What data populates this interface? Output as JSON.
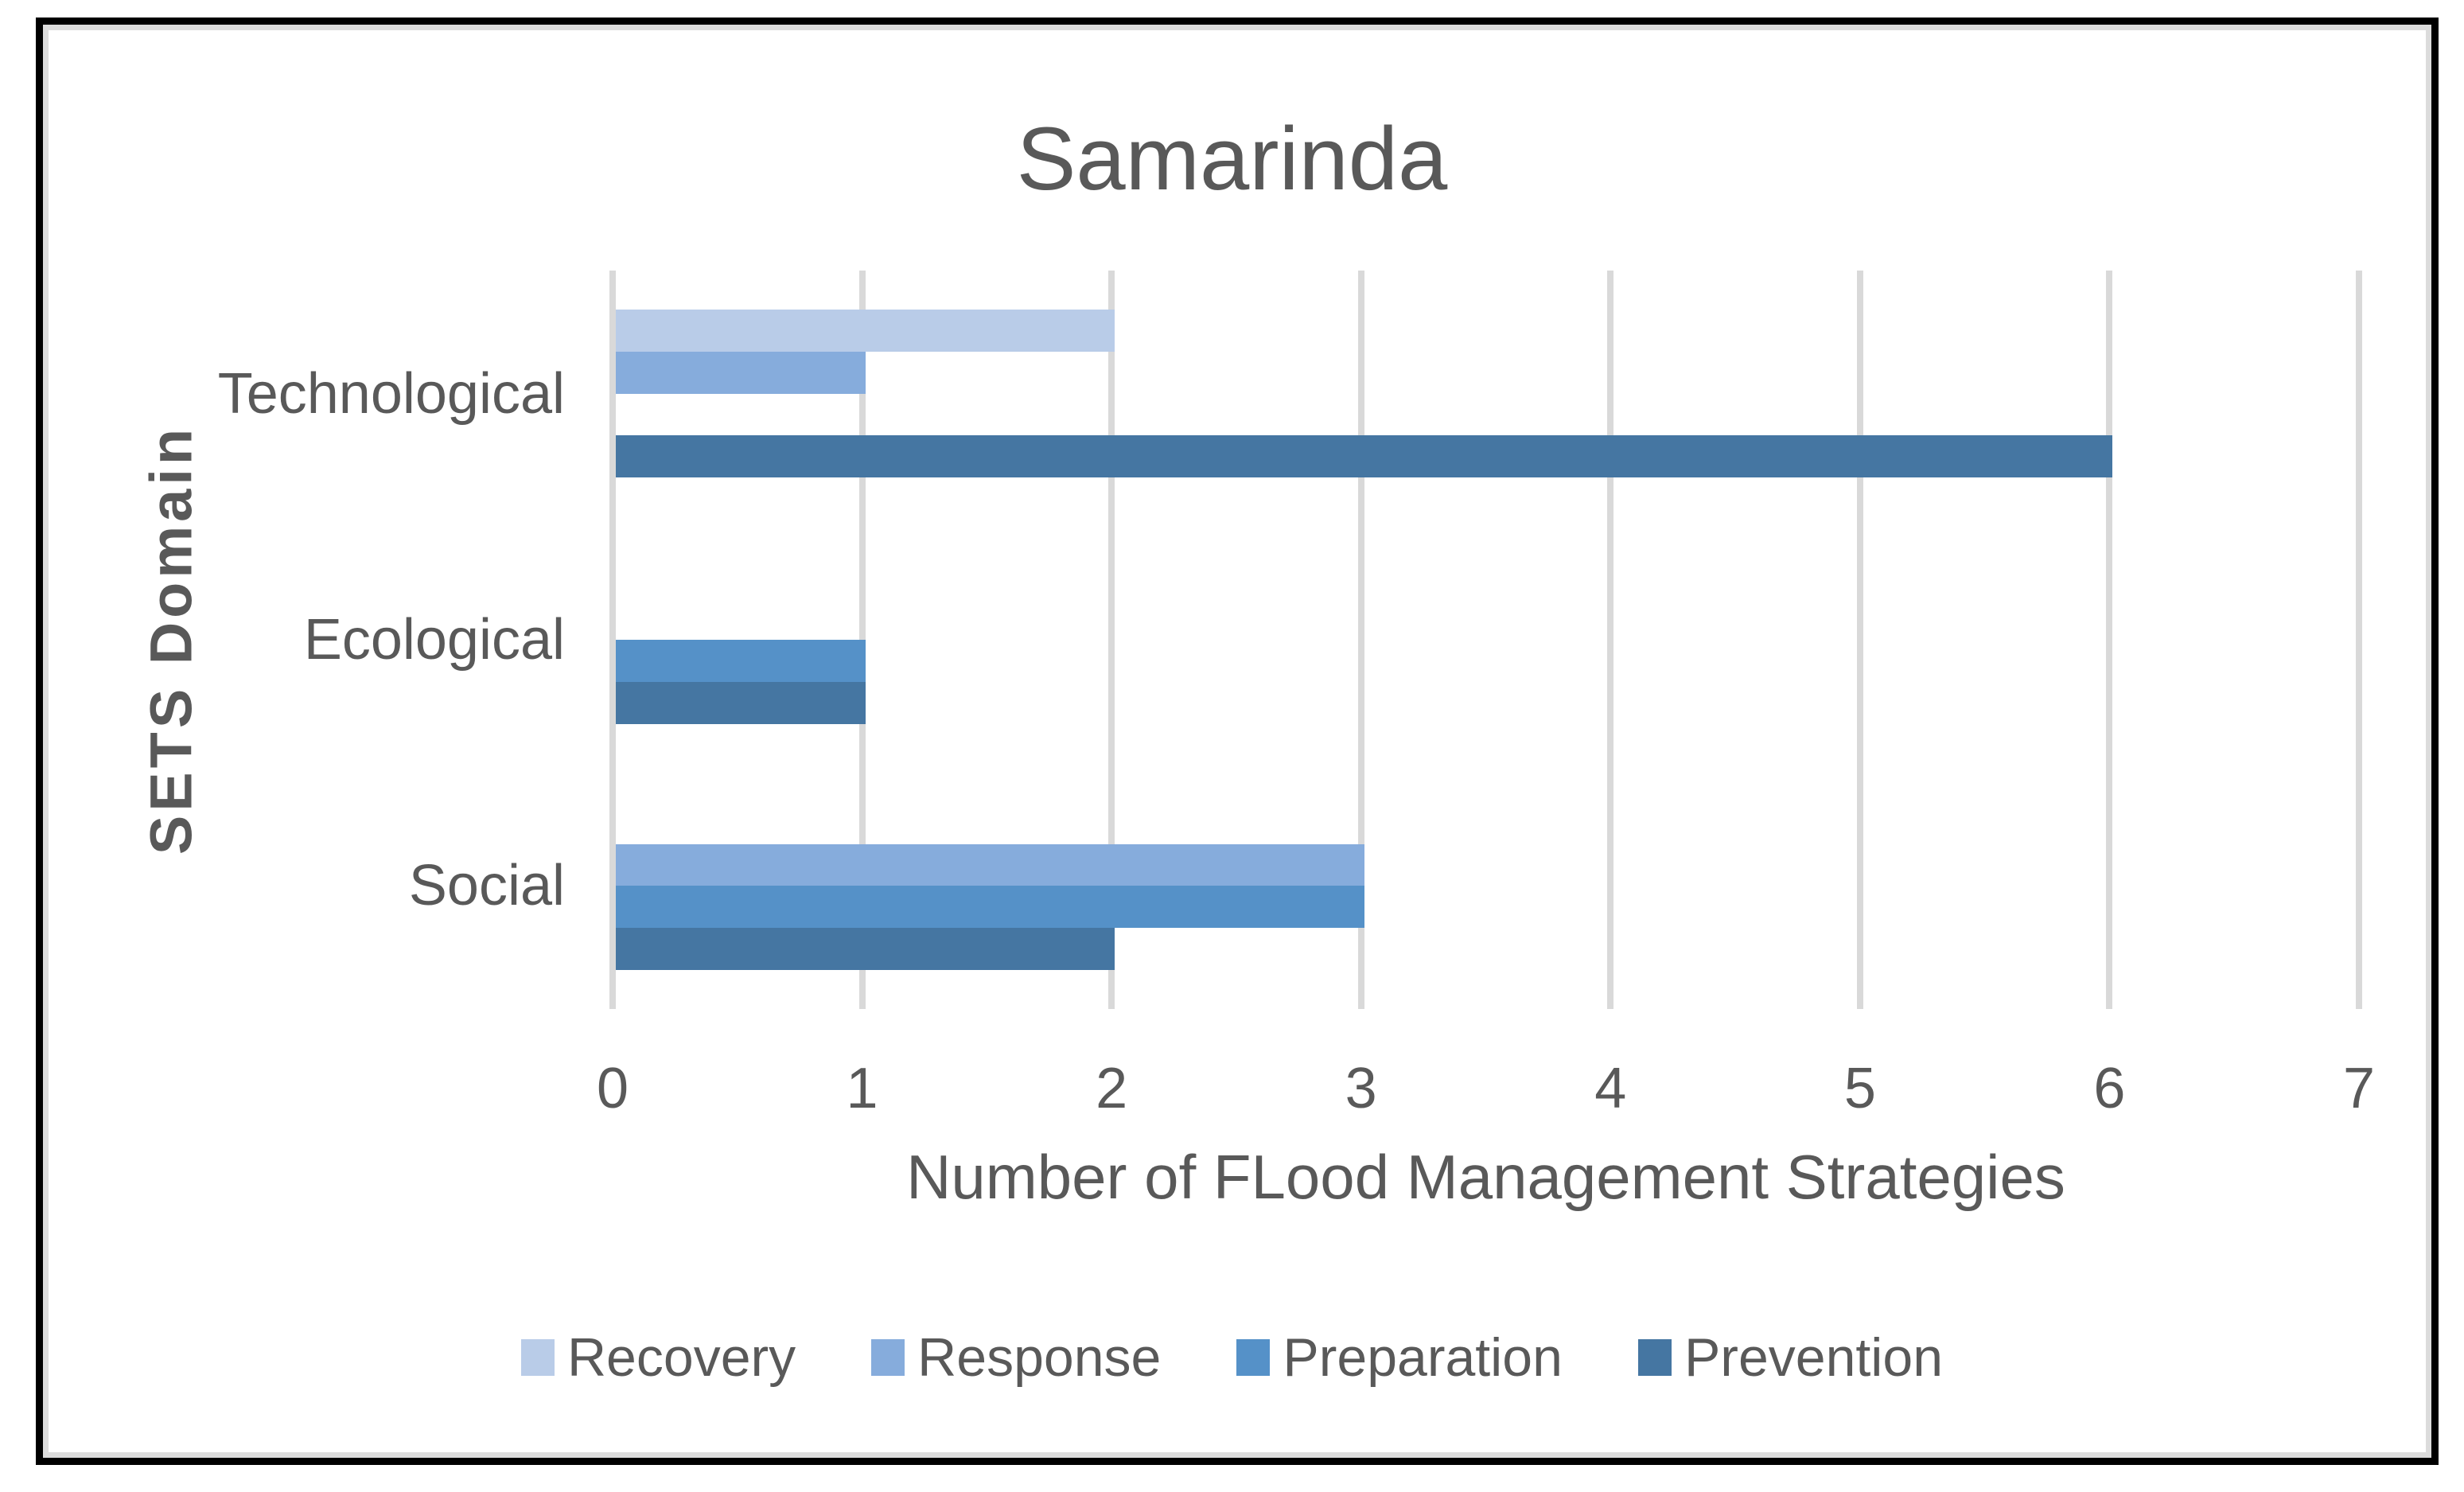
{
  "title": "Samarinda",
  "axes": {
    "x_title": "Number of FLood Management Strategies",
    "y_title": "SETS Domain"
  },
  "style": {
    "text_color": "#595959",
    "gridline_color": "#d9d9d9",
    "frame_border_color": "#000000",
    "inner_border_color": "#dcdcdc",
    "background": "#ffffff"
  },
  "chart_data": {
    "type": "bar",
    "orientation": "horizontal",
    "title": "Samarinda",
    "xlabel": "Number of FLood Management Strategies",
    "ylabel": "SETS Domain",
    "xlim": [
      0,
      7
    ],
    "x_ticks": [
      0,
      1,
      2,
      3,
      4,
      5,
      6,
      7
    ],
    "grid": true,
    "legend_position": "bottom",
    "categories": [
      "Technological",
      "Ecological",
      "Social"
    ],
    "series_order_top_to_bottom_within_group": [
      "Recovery",
      "Response",
      "Preparation",
      "Prevention"
    ],
    "series": [
      {
        "name": "Recovery",
        "color": "#b9cce8",
        "values": [
          2,
          0,
          0
        ]
      },
      {
        "name": "Response",
        "color": "#86acdc",
        "values": [
          1,
          0,
          3
        ]
      },
      {
        "name": "Preparation",
        "color": "#5591c8",
        "values": [
          0,
          1,
          3
        ]
      },
      {
        "name": "Prevention",
        "color": "#4576a2",
        "values": [
          6,
          1,
          2
        ]
      }
    ]
  }
}
